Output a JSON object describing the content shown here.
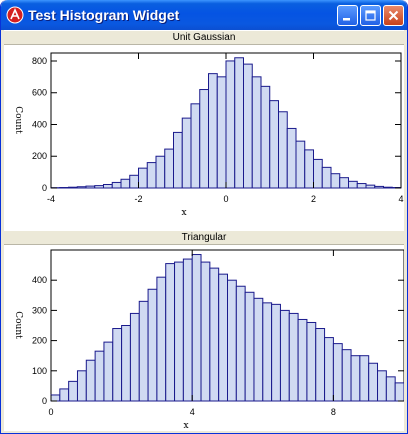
{
  "window": {
    "title": "Test Histogram Widget",
    "icon": "app-logo-icon",
    "controls": [
      "minimize-icon",
      "maximize-icon",
      "close-icon"
    ]
  },
  "colors": {
    "bar_fill": "#d0daf2",
    "bar_stroke": "#1a1a8c",
    "panel_header": "#ece9d8"
  },
  "chart_data": [
    {
      "type": "bar",
      "title": "Unit Gaussian",
      "xlabel": "x",
      "ylabel": "Count",
      "xlim": [
        -4,
        4
      ],
      "ylim": [
        0,
        850
      ],
      "xticks": [
        -4,
        -2,
        0,
        2,
        4
      ],
      "yticks": [
        0,
        200,
        400,
        600,
        800
      ],
      "bin_start": -4.0,
      "bin_width": 0.2,
      "values": [
        2,
        3,
        5,
        8,
        12,
        15,
        22,
        35,
        55,
        80,
        125,
        160,
        200,
        245,
        350,
        440,
        530,
        620,
        720,
        700,
        800,
        820,
        780,
        700,
        640,
        550,
        480,
        375,
        295,
        240,
        180,
        130,
        90,
        65,
        42,
        28,
        18,
        10,
        5,
        3
      ]
    },
    {
      "type": "bar",
      "title": "Triangular",
      "xlabel": "x",
      "ylabel": "Count",
      "xlim": [
        0,
        10
      ],
      "ylim": [
        0,
        500
      ],
      "xticks": [
        0,
        4,
        8
      ],
      "yticks": [
        0,
        100,
        200,
        300,
        400
      ],
      "bin_start": 0.0,
      "bin_width": 0.25,
      "values": [
        20,
        40,
        65,
        100,
        135,
        165,
        195,
        240,
        250,
        290,
        330,
        370,
        410,
        455,
        460,
        470,
        485,
        460,
        440,
        420,
        400,
        380,
        360,
        340,
        325,
        320,
        300,
        290,
        270,
        260,
        240,
        210,
        190,
        170,
        150,
        150,
        125,
        100,
        80,
        60
      ]
    }
  ]
}
